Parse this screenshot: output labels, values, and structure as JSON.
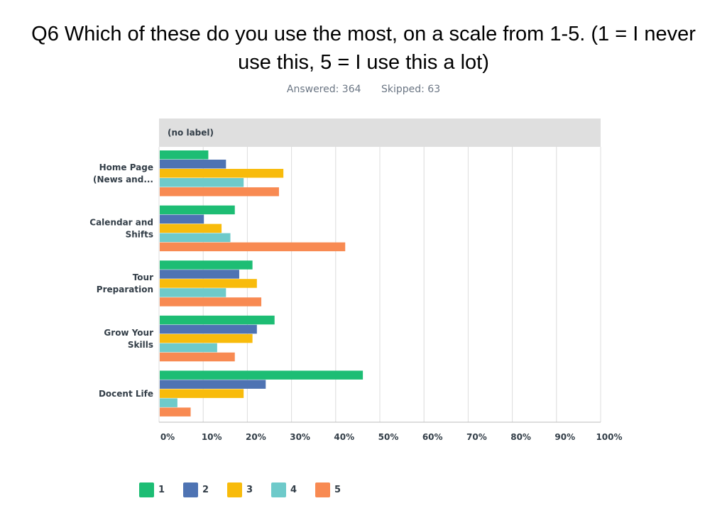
{
  "title_line1": "Q6 Which of these do you use the most, on a scale from 1-5. (1 = I never",
  "title_line2": "use this, 5 = I use this a lot)",
  "answered": "Answered: 364",
  "skipped": "Skipped: 63",
  "colors": {
    "s1": "#1dbd74",
    "s2": "#4e73b3",
    "s3": "#f8bb0b",
    "s4": "#6ecaca",
    "s5": "#f88a52",
    "grid": "#dcdcdc",
    "header_bg": "#dfdfdf",
    "text": "#333e48"
  },
  "chart_data": {
    "type": "bar",
    "orientation": "horizontal",
    "header": "(no label)",
    "categories": [
      [
        "Home Page",
        "(News and..."
      ],
      [
        "Calendar and",
        "Shifts"
      ],
      [
        "Tour",
        "Preparation"
      ],
      [
        "Grow Your",
        "Skills"
      ],
      [
        "Docent Life"
      ]
    ],
    "series": [
      {
        "name": "1",
        "values": [
          11,
          17,
          21,
          26,
          46
        ]
      },
      {
        "name": "2",
        "values": [
          15,
          10,
          18,
          22,
          24
        ]
      },
      {
        "name": "3",
        "values": [
          28,
          14,
          22,
          21,
          19
        ]
      },
      {
        "name": "4",
        "values": [
          19,
          16,
          15,
          13,
          4
        ]
      },
      {
        "name": "5",
        "values": [
          27,
          42,
          23,
          17,
          7
        ]
      }
    ],
    "xticks": [
      "0%",
      "10%",
      "20%",
      "30%",
      "40%",
      "50%",
      "60%",
      "70%",
      "80%",
      "90%",
      "100%"
    ],
    "xlim": [
      0,
      100
    ],
    "grid": true,
    "legend_position": "bottom"
  }
}
